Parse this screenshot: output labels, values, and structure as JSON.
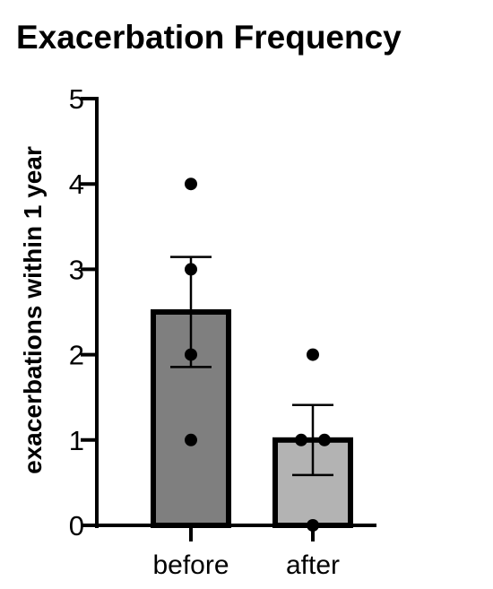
{
  "chart_data": {
    "type": "bar",
    "title": "Exacerbation Frequency",
    "ylabel": "exacerbations within 1 year",
    "xlabel": "",
    "ylim": [
      0,
      5
    ],
    "yticks": [
      "0",
      "1",
      "2",
      "3",
      "4",
      "5"
    ],
    "categories": [
      "before",
      "after"
    ],
    "values": [
      2.5,
      1.0
    ],
    "error": [
      0.645,
      0.41
    ],
    "points": [
      [
        4,
        3,
        2,
        1
      ],
      [
        2,
        1,
        1,
        0
      ]
    ],
    "colors": [
      "#7f7f7f",
      "#b3b3b3"
    ],
    "grid": false,
    "legend": "none"
  }
}
